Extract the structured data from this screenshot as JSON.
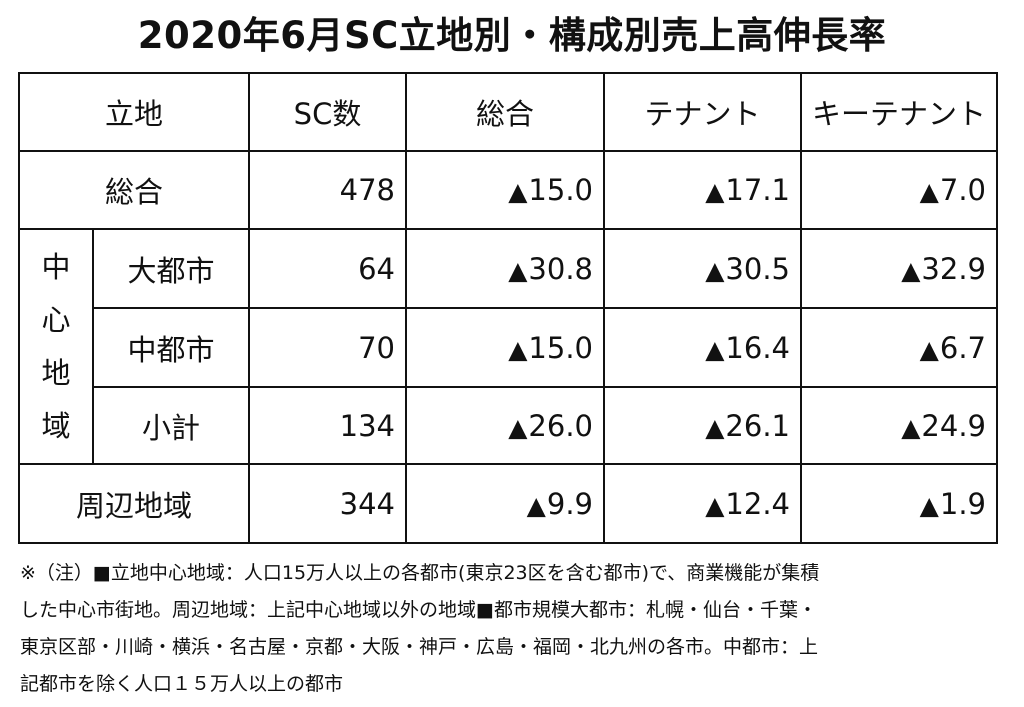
{
  "title": "2020年6月SC立地別・構成別売上高伸長率",
  "table": {
    "headers": {
      "location": "立地",
      "sc_count": "SC数",
      "total": "総合",
      "tenant": "テナント",
      "key_tenant": "キーテナント"
    },
    "triangle": "▲",
    "rows": {
      "overall": {
        "label": "総合",
        "sc": "478",
        "total": "15.0",
        "tenant": "17.1",
        "key": "7.0"
      },
      "center_group_chars": [
        "中",
        "心",
        "地",
        "域"
      ],
      "large_city": {
        "label": "大都市",
        "sc": "64",
        "total": "30.8",
        "tenant": "30.5",
        "key": "32.9"
      },
      "mid_city": {
        "label": "中都市",
        "sc": "70",
        "total": "15.0",
        "tenant": "16.4",
        "key": "6.7"
      },
      "subtotal": {
        "label": "小計",
        "sc": "134",
        "total": "26.0",
        "tenant": "26.1",
        "key": "24.9"
      },
      "surrounding": {
        "label": "周辺地域",
        "sc": "344",
        "total": "9.9",
        "tenant": "12.4",
        "key": "1.9"
      }
    }
  },
  "note": {
    "line1": "※（注）■立地中心地域：人口15万人以上の各都市(東京23区を含む都市)で、商業機能が集積",
    "line2": "した中心市街地。周辺地域：上記中心地域以外の地域■都市規模大都市：札幌・仙台・千葉・",
    "line3": "東京区部・川崎・横浜・名古屋・京都・大阪・神戸・広島・福岡・北九州の各市。中都市：上",
    "line4": "記都市を除く人口１５万人以上の都市"
  }
}
